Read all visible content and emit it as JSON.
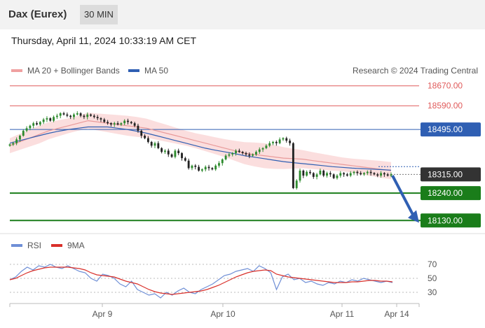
{
  "header": {
    "instrument": "Dax (Eurex)",
    "interval": "30 MIN"
  },
  "timestamp": "Thursday, April 11, 2024 10:33:19 AM CET",
  "legend": {
    "ma20_bb": "MA 20 + Bollinger Bands",
    "ma50": "MA 50",
    "credit": "Research © 2024 Trading Central"
  },
  "rsi_legend": {
    "rsi": "RSI",
    "ma9": "9MA"
  },
  "colors": {
    "resistance": "#e05a5a",
    "ma50": "#2f5fb3",
    "support": "#1a7d1a",
    "bollinger": "#f8c8c8",
    "ma20": "#e89a9a",
    "candle_up": "#2e8b2e",
    "candle_down": "#222222",
    "current": "#333333",
    "arrow": "#2f5fb3",
    "rsi": "#6f8fd6",
    "rsi_ma": "#d9302a"
  },
  "chart_data": [
    {
      "type": "candlestick",
      "title": "",
      "ylim": [
        18100,
        18700
      ],
      "x_tick_labels": [
        "Apr 9",
        "Apr 10",
        "Apr 11",
        "Apr 14"
      ],
      "price_levels": [
        {
          "value": 18670,
          "label": "18670.00",
          "kind": "resistance"
        },
        {
          "value": 18590,
          "label": "18590.00",
          "kind": "resistance"
        },
        {
          "value": 18495,
          "label": "18495.00",
          "kind": "ma50"
        },
        {
          "value": 18315,
          "label": "18315.00",
          "kind": "current"
        },
        {
          "value": 18240,
          "label": "18240.00",
          "kind": "support"
        },
        {
          "value": 18130,
          "label": "18130.00",
          "kind": "support"
        }
      ],
      "close_series": [
        18435,
        18440,
        18455,
        18470,
        18490,
        18500,
        18510,
        18520,
        18515,
        18525,
        18535,
        18540,
        18530,
        18545,
        18550,
        18560,
        18555,
        18550,
        18545,
        18555,
        18560,
        18550,
        18545,
        18555,
        18550,
        18545,
        18540,
        18535,
        18525,
        18520,
        18515,
        18520,
        18515,
        18520,
        18530,
        18525,
        18520,
        18510,
        18490,
        18470,
        18460,
        18445,
        18430,
        18440,
        18420,
        18405,
        18410,
        18395,
        18385,
        18410,
        18400,
        18380,
        18370,
        18340,
        18350,
        18345,
        18330,
        18335,
        18345,
        18340,
        18335,
        18350,
        18360,
        18375,
        18390,
        18395,
        18400,
        18410,
        18405,
        18400,
        18395,
        18390,
        18395,
        18405,
        18415,
        18420,
        18430,
        18440,
        18445,
        18440,
        18455,
        18460,
        18450,
        18440,
        18260,
        18290,
        18330,
        18310,
        18325,
        18320,
        18305,
        18315,
        18330,
        18310,
        18320,
        18315,
        18300,
        18310,
        18320,
        18315,
        18310,
        18320,
        18325,
        18320,
        18315,
        18320,
        18325,
        18320,
        18315,
        18310,
        18320,
        18315,
        18310,
        18315
      ],
      "ma20": [
        18430,
        18445,
        18460,
        18475,
        18490,
        18500,
        18510,
        18520,
        18530,
        18525,
        18520,
        18515,
        18510,
        18505,
        18500,
        18490,
        18480,
        18470,
        18460,
        18450,
        18440,
        18430,
        18420,
        18410,
        18400,
        18395,
        18390,
        18385,
        18380,
        18378,
        18376,
        18370,
        18365,
        18360,
        18355,
        18350,
        18345,
        18340,
        18335,
        18330
      ],
      "ma50": [
        18440,
        18450,
        18460,
        18470,
        18480,
        18488,
        18495,
        18500,
        18505,
        18505,
        18505,
        18500,
        18495,
        18488,
        18480,
        18470,
        18460,
        18450,
        18440,
        18430,
        18420,
        18412,
        18405,
        18398,
        18390,
        18384,
        18378,
        18372,
        18366,
        18362,
        18358,
        18354,
        18350,
        18346,
        18343,
        18340,
        18338,
        18336,
        18334,
        18332
      ]
    },
    {
      "type": "line",
      "title": "",
      "ylim": [
        20,
        80
      ],
      "y_tick_labels": [
        "70",
        "50",
        "30"
      ],
      "series": [
        {
          "name": "RSI",
          "values": [
            48,
            52,
            60,
            66,
            62,
            68,
            66,
            70,
            66,
            64,
            68,
            64,
            60,
            58,
            50,
            46,
            56,
            54,
            50,
            42,
            38,
            46,
            34,
            30,
            26,
            28,
            22,
            30,
            26,
            32,
            36,
            30,
            28,
            34,
            38,
            42,
            48,
            54,
            56,
            60,
            62,
            64,
            60,
            68,
            64,
            58,
            34,
            52,
            56,
            48,
            50,
            44,
            46,
            42,
            40,
            44,
            42,
            46,
            44,
            48,
            46,
            50,
            48,
            46,
            44,
            46,
            44
          ]
        },
        {
          "name": "9MA",
          "values": [
            48,
            50,
            54,
            58,
            61,
            63,
            65,
            66,
            66,
            66,
            66,
            65,
            64,
            62,
            58,
            55,
            54,
            53,
            52,
            49,
            46,
            44,
            42,
            38,
            34,
            31,
            29,
            28,
            27,
            28,
            29,
            30,
            31,
            32,
            34,
            37,
            40,
            44,
            48,
            52,
            55,
            58,
            60,
            61,
            62,
            61,
            56,
            54,
            52,
            51,
            50,
            49,
            48,
            47,
            46,
            45,
            44,
            44,
            44,
            45,
            45,
            46,
            47,
            47,
            46,
            46,
            45
          ]
        }
      ]
    }
  ]
}
